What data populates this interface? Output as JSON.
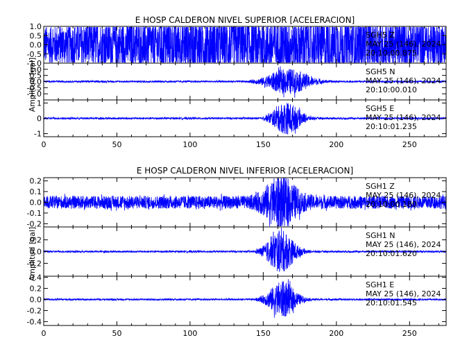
{
  "chart_data": [
    {
      "type": "line",
      "title": "E HOSP CALDERON NIVEL SUPERIOR [ACELERACION]",
      "ylabel": "Amplitud [gal]",
      "xlim": [
        0,
        275
      ],
      "x_ticks": [
        0,
        50,
        100,
        150,
        200,
        250
      ],
      "line_color": "#0000ff",
      "series": [
        {
          "station": "SGH5",
          "component": "Z",
          "date": "MAY 25 (146), 2024",
          "time": "20:10:00.875",
          "ylim": [
            -1.0,
            1.0
          ],
          "yticks": [
            "-1.0",
            "-0.5",
            "0.0",
            "0.5",
            "1.0"
          ],
          "noise_amplitude": 0.7,
          "event_peak": 0.9,
          "event_start": 0,
          "event_center": 160,
          "event_width": 200
        },
        {
          "station": "SGH5",
          "component": "N",
          "date": "MAY 25 (146), 2024",
          "time": "20:10:00.010",
          "ylim": [
            -1.5,
            1.5
          ],
          "yticks": [
            "-1.0",
            "-0.5",
            "0.0",
            "0.5",
            "1.0"
          ],
          "noise_amplitude": 0.07,
          "event_peak": 1.0,
          "event_start": 140,
          "event_center": 167,
          "event_width": 18
        },
        {
          "station": "SGH5",
          "component": "E",
          "date": "MAY 25 (146), 2024",
          "time": "20:10:01.235",
          "ylim": [
            -1.2,
            1.2
          ],
          "yticks": [
            "-1",
            "0",
            "1"
          ],
          "noise_amplitude": 0.06,
          "event_peak": 1.0,
          "event_start": 150,
          "event_center": 166,
          "event_width": 12
        }
      ]
    },
    {
      "type": "line",
      "title": "E HOSP CALDERON NIVEL INFERIOR [ACELERACION]",
      "ylabel": "Amplitud [gal]",
      "xlim": [
        0,
        275
      ],
      "x_ticks": [
        0,
        50,
        100,
        150,
        200,
        250
      ],
      "line_color": "#0000ff",
      "series": [
        {
          "station": "SGH1",
          "component": "Z",
          "date": "MAY 25 (146), 2024",
          "time": "20:10:00.180",
          "ylim": [
            -0.23,
            0.23
          ],
          "yticks": [
            "-0.2",
            "-0.1",
            "0.0",
            "0.1",
            "0.2"
          ],
          "noise_amplitude": 0.06,
          "event_peak": 0.2,
          "event_start": 140,
          "event_center": 162,
          "event_width": 14
        },
        {
          "station": "SGH1",
          "component": "N",
          "date": "MAY 25 (146), 2024",
          "time": "20:10:01.620",
          "ylim": [
            -0.42,
            0.42
          ],
          "yticks": [
            "-0.2",
            "0.0",
            "0.2"
          ],
          "noise_amplitude": 0.015,
          "event_peak": 0.35,
          "event_start": 145,
          "event_center": 162,
          "event_width": 12
        },
        {
          "station": "SGH1",
          "component": "E",
          "date": "MAY 25 (146), 2024",
          "time": "20:10:01.545",
          "ylim": [
            -0.47,
            0.42
          ],
          "yticks": [
            "-0.4",
            "-0.2",
            "0.0",
            "0.2",
            "0.4"
          ],
          "noise_amplitude": 0.015,
          "event_peak": 0.32,
          "event_start": 145,
          "event_center": 163,
          "event_width": 12
        }
      ]
    }
  ]
}
